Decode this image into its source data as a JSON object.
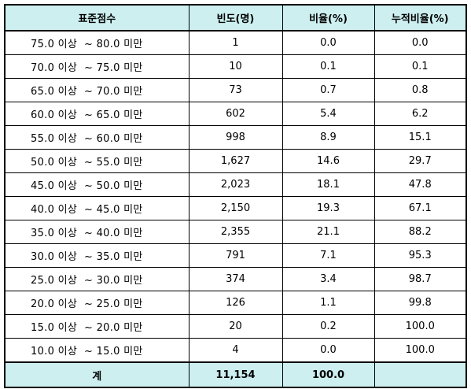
{
  "table": {
    "headers": [
      "표준점수",
      "빈도(명)",
      "비율(%)",
      "누적비율(%)"
    ],
    "rows": [
      {
        "range": "75.0 이상  ~ 80.0 미만",
        "freq": "1",
        "ratio": "0.0",
        "cum": "0.0"
      },
      {
        "range": "70.0 이상  ~ 75.0 미만",
        "freq": "10",
        "ratio": "0.1",
        "cum": "0.1"
      },
      {
        "range": "65.0 이상  ~ 70.0 미만",
        "freq": "73",
        "ratio": "0.7",
        "cum": "0.8"
      },
      {
        "range": "60.0 이상  ~ 65.0 미만",
        "freq": "602",
        "ratio": "5.4",
        "cum": "6.2"
      },
      {
        "range": "55.0 이상  ~ 60.0 미만",
        "freq": "998",
        "ratio": "8.9",
        "cum": "15.1"
      },
      {
        "range": "50.0 이상  ~ 55.0 미만",
        "freq": "1,627",
        "ratio": "14.6",
        "cum": "29.7"
      },
      {
        "range": "45.0 이상  ~ 50.0 미만",
        "freq": "2,023",
        "ratio": "18.1",
        "cum": "47.8"
      },
      {
        "range": "40.0 이상  ~ 45.0 미만",
        "freq": "2,150",
        "ratio": "19.3",
        "cum": "67.1"
      },
      {
        "range": "35.0 이상  ~ 40.0 미만",
        "freq": "2,355",
        "ratio": "21.1",
        "cum": "88.2"
      },
      {
        "range": "30.0 이상  ~ 35.0 미만",
        "freq": "791",
        "ratio": "7.1",
        "cum": "95.3"
      },
      {
        "range": "25.0 이상  ~ 30.0 미만",
        "freq": "374",
        "ratio": "3.4",
        "cum": "98.7"
      },
      {
        "range": "20.0 이상  ~ 25.0 미만",
        "freq": "126",
        "ratio": "1.1",
        "cum": "99.8"
      },
      {
        "range": "15.0 이상  ~ 20.0 미만",
        "freq": "20",
        "ratio": "0.2",
        "cum": "100.0"
      },
      {
        "range": "10.0 이상  ~ 15.0 미만",
        "freq": "4",
        "ratio": "0.0",
        "cum": "100.0"
      }
    ],
    "total": {
      "label": "계",
      "freq": "11,154",
      "ratio": "100.0",
      "cum": ""
    }
  },
  "colors": {
    "header_bg": "#cdeff0",
    "border": "#000000"
  }
}
